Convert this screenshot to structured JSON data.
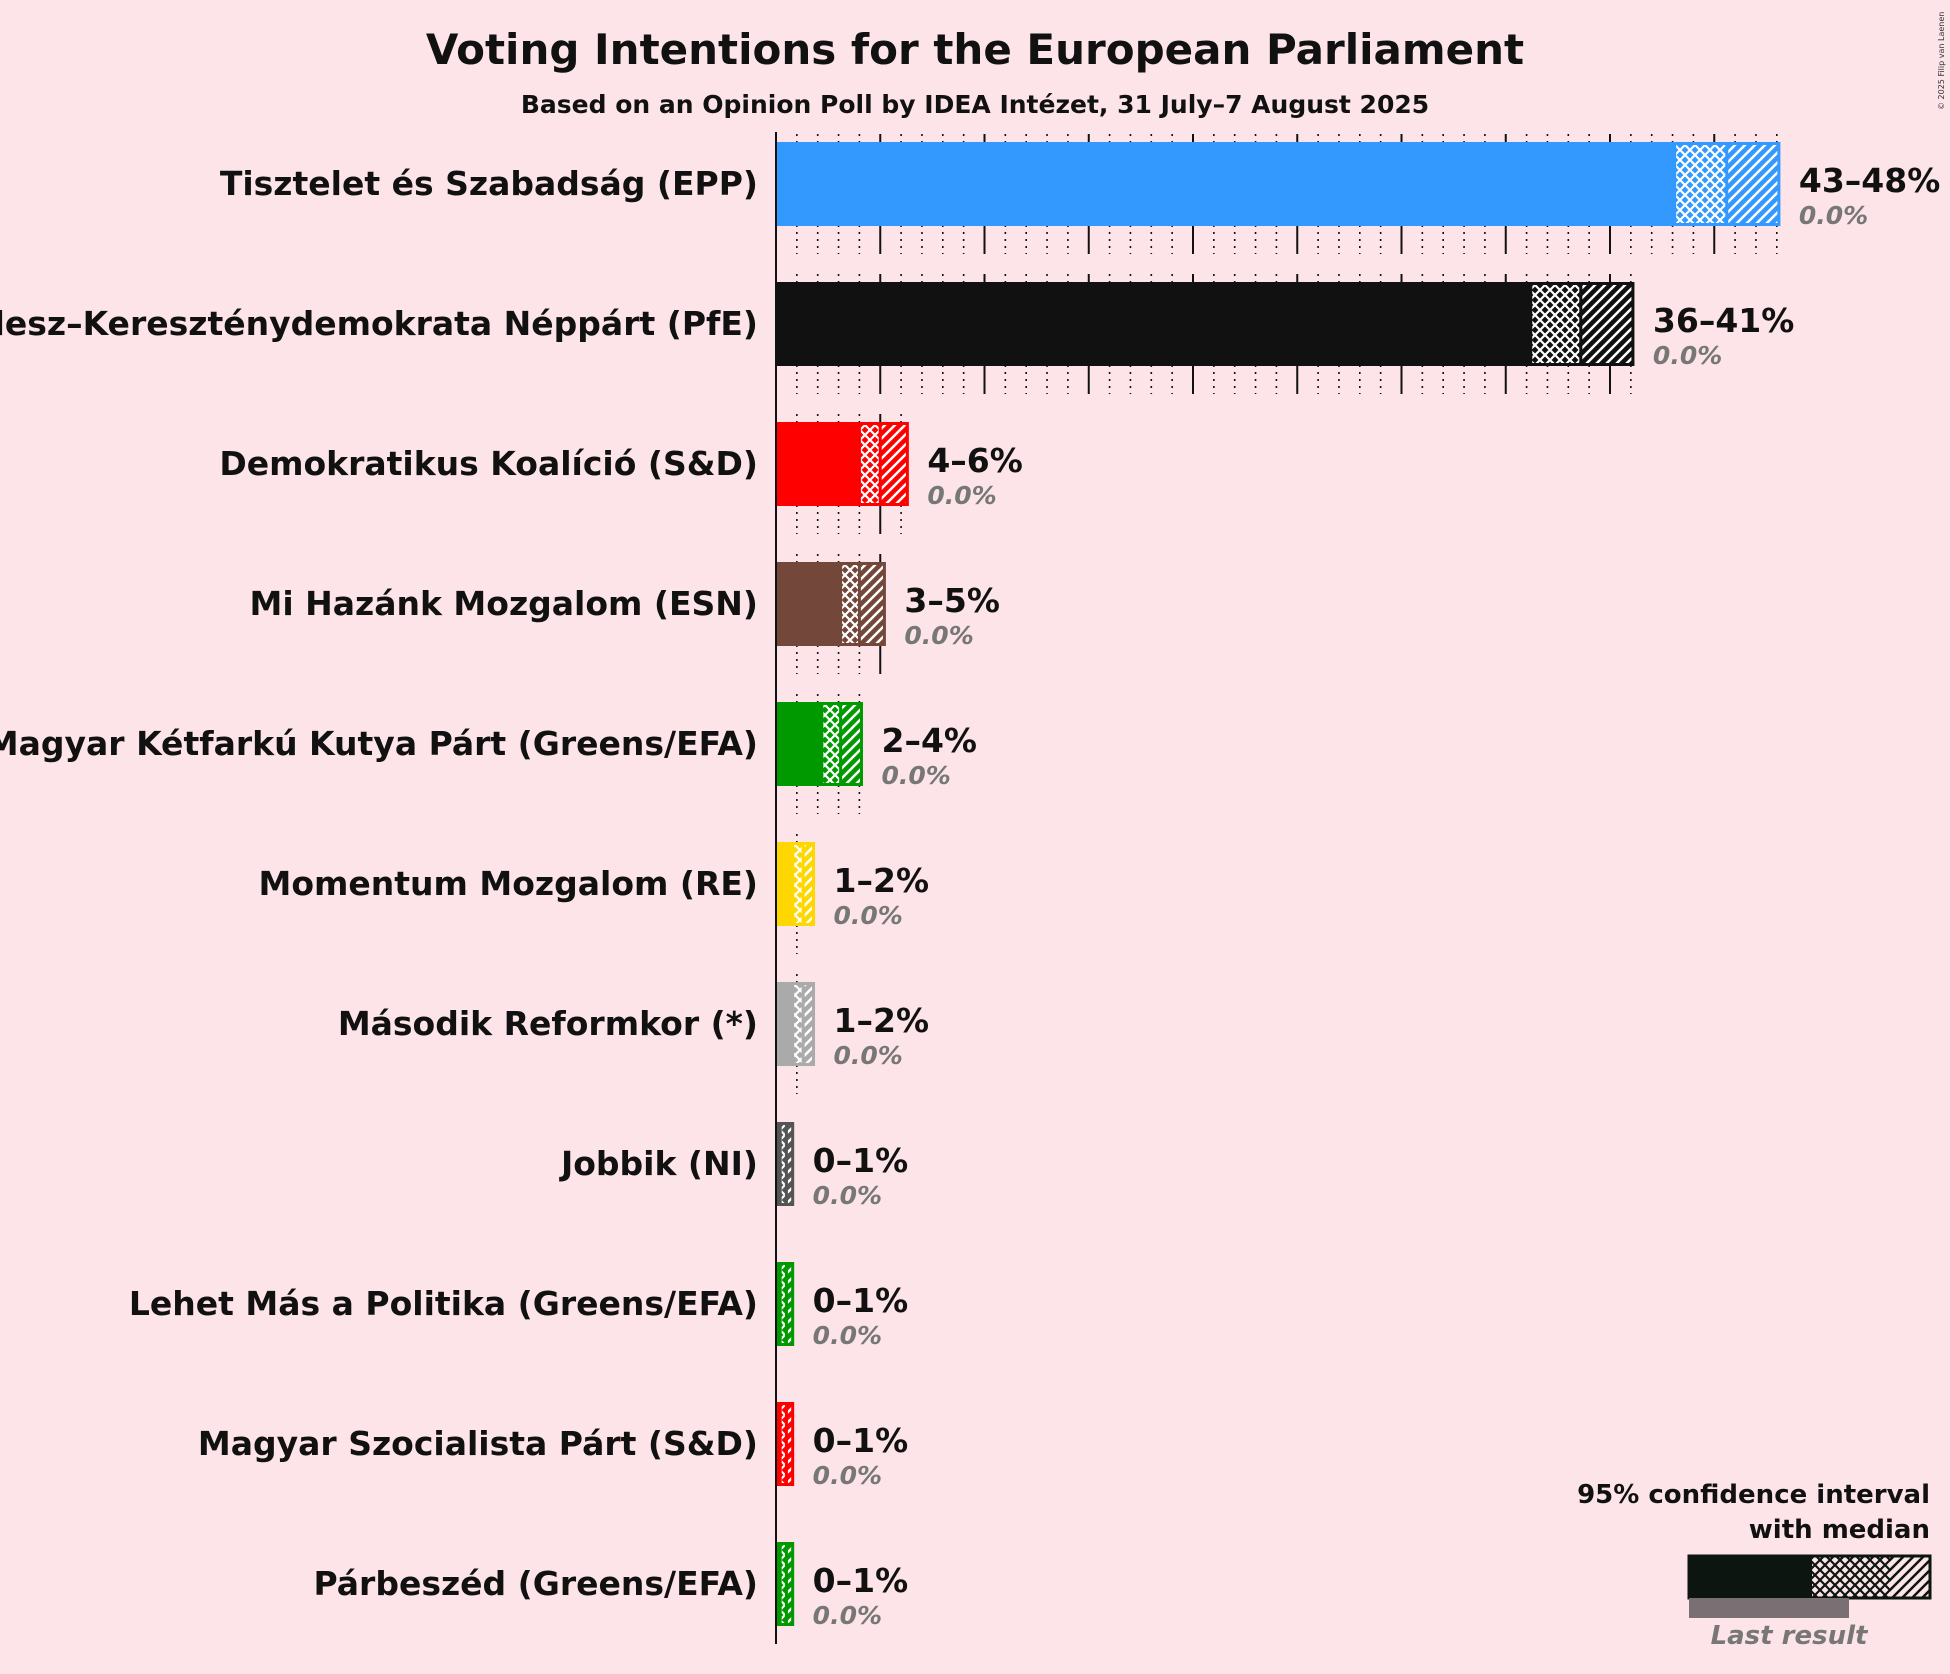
{
  "chart_data": {
    "type": "bar",
    "orientation": "horizontal",
    "title": "Voting Intentions for the European Parliament",
    "subtitle": "Based on an Opinion Poll by IDEA Intézet, 31 July–7 August 2025",
    "copyright": "© 2025 Filip van Laenen",
    "xlim": [
      0,
      50
    ],
    "categories": [
      "Tisztelet és Szabadság (EPP)",
      "Fidesz–Kereszténydemokrata Néppárt (PfE)",
      "Demokratikus Koalíció (S&D)",
      "Mi Hazánk Mozgalom (ESN)",
      "Magyar Kétfarkú Kutya Párt (Greens/EFA)",
      "Momentum Mozgalom (RE)",
      "Második Reformkor (*)",
      "Jobbik (NI)",
      "Lehet Más a Politika (Greens/EFA)",
      "Magyar Szocialista Párt (S&D)",
      "Párbeszéd (Greens/EFA)"
    ],
    "series": [
      {
        "party": "Tisztelet és Szabadság (EPP)",
        "color": "#3399ff",
        "ci_low": 43.1,
        "median": 45.6,
        "ci_high": 48.1,
        "range_label": "43–48%",
        "last_result": 0.0,
        "last_label": "0.0%"
      },
      {
        "party": "Fidesz–Kereszténydemokrata Néppárt (PfE)",
        "color": "#111111",
        "ci_low": 36.2,
        "median": 38.6,
        "ci_high": 41.1,
        "range_label": "36–41%",
        "last_result": 0.0,
        "last_label": "0.0%"
      },
      {
        "party": "Demokratikus Koalíció (S&D)",
        "color": "#ff0000",
        "ci_low": 4.0,
        "median": 5.0,
        "ci_high": 6.3,
        "range_label": "4–6%",
        "last_result": 0.0,
        "last_label": "0.0%"
      },
      {
        "party": "Mi Hazánk Mozgalom (ESN)",
        "color": "#73473a",
        "ci_low": 3.1,
        "median": 4.0,
        "ci_high": 5.2,
        "range_label": "3–5%",
        "last_result": 0.0,
        "last_label": "0.0%"
      },
      {
        "party": "Magyar Kétfarkú Kutya Párt (Greens/EFA)",
        "color": "#009900",
        "ci_low": 2.2,
        "median": 3.1,
        "ci_high": 4.1,
        "range_label": "2–4%",
        "last_result": 0.0,
        "last_label": "0.0%"
      },
      {
        "party": "Momentum Mozgalom (RE)",
        "color": "#ffd700",
        "ci_low": 0.8,
        "median": 1.3,
        "ci_high": 1.8,
        "range_label": "1–2%",
        "last_result": 0.0,
        "last_label": "0.0%"
      },
      {
        "party": "Második Reformkor (*)",
        "color": "#aaaaaa",
        "ci_low": 0.8,
        "median": 1.3,
        "ci_high": 1.8,
        "range_label": "1–2%",
        "last_result": 0.0,
        "last_label": "0.0%"
      },
      {
        "party": "Jobbik (NI)",
        "color": "#555555",
        "ci_low": 0.2,
        "median": 0.5,
        "ci_high": 0.8,
        "range_label": "0–1%",
        "last_result": 0.0,
        "last_label": "0.0%"
      },
      {
        "party": "Lehet Más a Politika (Greens/EFA)",
        "color": "#009900",
        "ci_low": 0.2,
        "median": 0.5,
        "ci_high": 0.8,
        "range_label": "0–1%",
        "last_result": 0.0,
        "last_label": "0.0%"
      },
      {
        "party": "Magyar Szocialista Párt (S&D)",
        "color": "#ff0000",
        "ci_low": 0.2,
        "median": 0.5,
        "ci_high": 0.8,
        "range_label": "0–1%",
        "last_result": 0.0,
        "last_label": "0.0%"
      },
      {
        "party": "Párbeszéd (Greens/EFA)",
        "color": "#009900",
        "ci_low": 0.2,
        "median": 0.5,
        "ci_high": 0.8,
        "range_label": "0–1%",
        "last_result": 0.0,
        "last_label": "0.0%"
      }
    ],
    "legend": {
      "line1": "95% confidence interval",
      "line2": "with median",
      "last_result": "Last result",
      "position": "bottom-right"
    },
    "grid": {
      "major_every": 5,
      "minor_every": 1,
      "style": "dotted minor, solid major"
    }
  }
}
